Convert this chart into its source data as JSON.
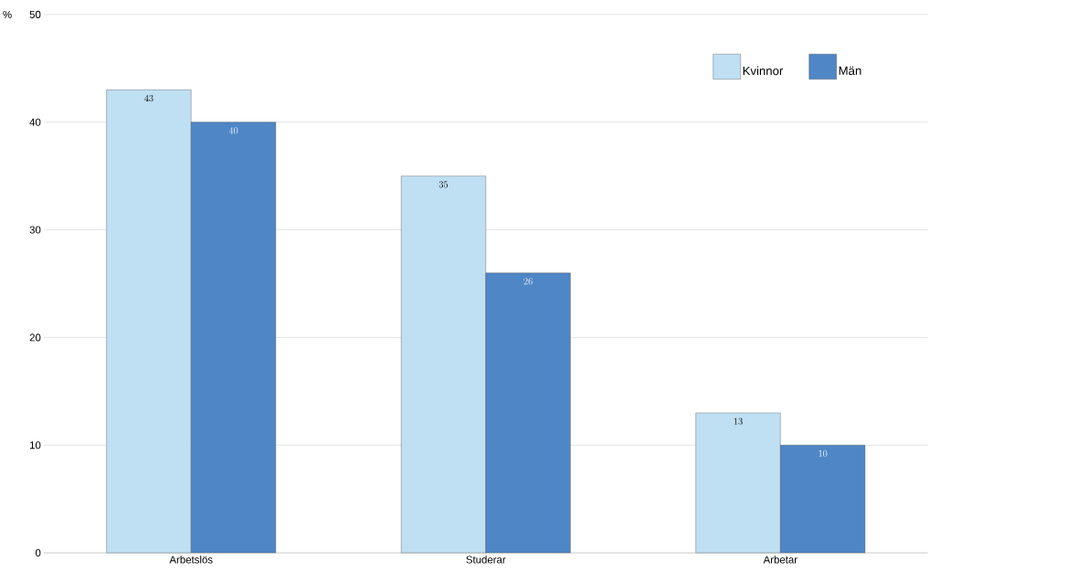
{
  "chart_data": {
    "type": "bar",
    "ylabel": "%",
    "categories": [
      "Arbetslös",
      "Studerar",
      "Arbetar"
    ],
    "series": [
      {
        "name": "Kvinnor",
        "color": "#bfdff3",
        "values": [
          43,
          35,
          13
        ]
      },
      {
        "name": "Män",
        "color": "#4f86c6",
        "values": [
          40,
          26,
          10
        ]
      }
    ],
    "ylim": [
      0,
      50
    ],
    "yticks": [
      0,
      10,
      20,
      30,
      40,
      50
    ],
    "grid": "y",
    "legend": "top right",
    "data_labels": true
  }
}
